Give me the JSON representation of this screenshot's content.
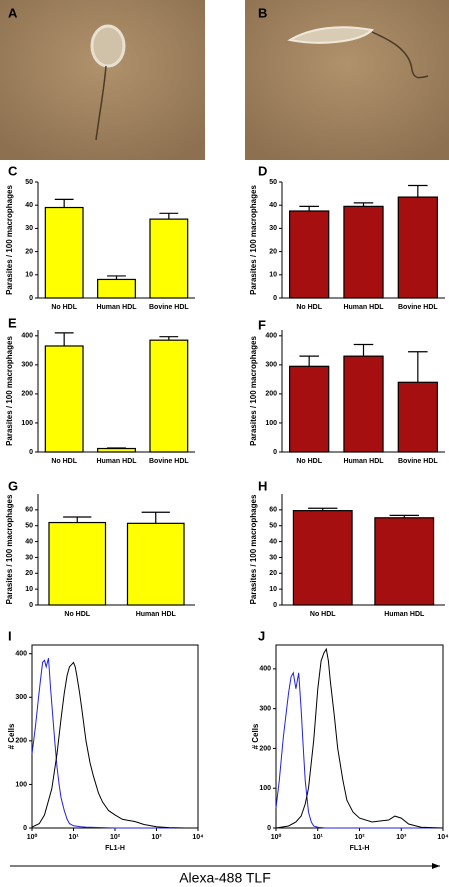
{
  "images": [
    {
      "panel": "A"
    },
    {
      "panel": "B"
    }
  ],
  "chart_data": [
    {
      "type": "bar",
      "panel": "C",
      "y_label": "Parasites / 100 macrophages",
      "categories": [
        "No HDL",
        "Human HDL",
        "Bovine HDL"
      ],
      "values": [
        39,
        8,
        34
      ],
      "errors": [
        3.5,
        1.5,
        2.5
      ],
      "color": "#ffff00",
      "ylim": [
        0,
        50
      ],
      "yticks": [
        0,
        10,
        20,
        30,
        40,
        50
      ]
    },
    {
      "type": "bar",
      "panel": "D",
      "y_label": "Parasites / 100 macrophages",
      "categories": [
        "No HDL",
        "Human HDL",
        "Bovine HDL"
      ],
      "values": [
        37.5,
        39.5,
        43.5
      ],
      "errors": [
        2,
        1.5,
        5
      ],
      "color": "#a50f0f",
      "ylim": [
        0,
        50
      ],
      "yticks": [
        0,
        10,
        20,
        30,
        40,
        50
      ]
    },
    {
      "type": "bar",
      "panel": "E",
      "y_label": "Parasites / 100 macrophages",
      "categories": [
        "No HDL",
        "Human HDL",
        "Bovine HDL"
      ],
      "values": [
        365,
        12,
        385
      ],
      "errors": [
        45,
        2,
        12
      ],
      "color": "#ffff00",
      "ylim": [
        0,
        420
      ],
      "yticks": [
        0,
        100,
        200,
        300,
        400
      ]
    },
    {
      "type": "bar",
      "panel": "F",
      "y_label": "Parasites / 100 macrophages",
      "categories": [
        "No HDL",
        "Human HDL",
        "Bovine HDL"
      ],
      "values": [
        295,
        330,
        240
      ],
      "errors": [
        35,
        40,
        105
      ],
      "color": "#a50f0f",
      "ylim": [
        0,
        420
      ],
      "yticks": [
        0,
        100,
        200,
        300,
        400
      ]
    },
    {
      "type": "bar",
      "panel": "G",
      "y_label": "Parasites / 100 macrophages",
      "categories": [
        "No HDL",
        "Human HDL"
      ],
      "values": [
        52,
        51.5
      ],
      "errors": [
        3.5,
        7
      ],
      "color": "#ffff00",
      "ylim": [
        0,
        70
      ],
      "yticks": [
        0,
        10,
        20,
        30,
        40,
        50,
        60
      ]
    },
    {
      "type": "bar",
      "panel": "H",
      "y_label": "Parasites / 100 macrophages",
      "categories": [
        "No HDL",
        "Human HDL"
      ],
      "values": [
        59.5,
        55
      ],
      "errors": [
        1.5,
        1.5
      ],
      "color": "#a50f0f",
      "ylim": [
        0,
        70
      ],
      "yticks": [
        0,
        10,
        20,
        30,
        40,
        50,
        60
      ]
    },
    {
      "type": "line",
      "panel": "I",
      "y_label": "# Cells",
      "x_label": "FL1-H",
      "log_x": true,
      "xlim": [
        1,
        10000
      ],
      "xticks": [
        {
          "value": 1,
          "label": "10⁰"
        },
        {
          "value": 10,
          "label": "10¹"
        },
        {
          "value": 100,
          "label": "10²"
        },
        {
          "value": 1000,
          "label": "10³"
        },
        {
          "value": 10000,
          "label": "10⁴"
        }
      ],
      "ylim": [
        0,
        420
      ],
      "yticks": [
        0,
        100,
        200,
        300,
        400
      ],
      "series": [
        {
          "color": "#2222dd",
          "x": [
            1,
            1.2,
            1.4,
            1.6,
            1.8,
            2,
            2.2,
            2.5,
            2.8,
            3.2,
            3.6,
            4,
            4.5,
            5,
            6,
            7,
            8,
            10,
            15,
            20,
            50,
            100,
            1000,
            10000
          ],
          "values": [
            170,
            230,
            290,
            340,
            380,
            385,
            370,
            390,
            320,
            250,
            190,
            140,
            100,
            70,
            40,
            20,
            10,
            5,
            3,
            2,
            1,
            0,
            0,
            0
          ]
        },
        {
          "color": "#000000",
          "x": [
            1,
            1.5,
            2,
            3,
            4,
            5,
            6,
            7,
            8,
            9,
            10,
            11,
            12,
            14,
            16,
            20,
            25,
            30,
            40,
            50,
            70,
            100,
            150,
            200,
            300,
            500,
            1000,
            2000,
            5000,
            10000
          ],
          "values": [
            2,
            10,
            30,
            90,
            170,
            250,
            310,
            350,
            370,
            375,
            380,
            370,
            350,
            310,
            270,
            200,
            150,
            120,
            80,
            60,
            40,
            30,
            20,
            18,
            15,
            8,
            3,
            1,
            0,
            0
          ]
        }
      ]
    },
    {
      "type": "line",
      "panel": "J",
      "y_label": "# Cells",
      "x_label": "FL1-H",
      "log_x": true,
      "xlim": [
        1,
        10000
      ],
      "xticks": [
        {
          "value": 1,
          "label": "10⁰"
        },
        {
          "value": 10,
          "label": "10¹"
        },
        {
          "value": 100,
          "label": "10²"
        },
        {
          "value": 1000,
          "label": "10³"
        },
        {
          "value": 10000,
          "label": "10⁴"
        }
      ],
      "ylim": [
        0,
        460
      ],
      "yticks": [
        0,
        100,
        200,
        300,
        400
      ],
      "series": [
        {
          "color": "#2222dd",
          "x": [
            1,
            1.2,
            1.5,
            1.8,
            2,
            2.3,
            2.6,
            3,
            3.5,
            4,
            4.5,
            5,
            6,
            7,
            8,
            10,
            15,
            100,
            10000
          ],
          "values": [
            50,
            120,
            230,
            300,
            340,
            380,
            390,
            350,
            390,
            300,
            200,
            120,
            40,
            15,
            5,
            2,
            0,
            0,
            0
          ]
        },
        {
          "color": "#000000",
          "x": [
            1,
            2,
            3,
            4,
            5,
            6,
            8,
            10,
            12,
            14,
            16,
            18,
            20,
            25,
            30,
            40,
            50,
            70,
            100,
            200,
            500,
            700,
            1000,
            1500,
            3000,
            10000
          ],
          "values": [
            0,
            5,
            15,
            30,
            60,
            100,
            220,
            350,
            420,
            440,
            450,
            420,
            370,
            280,
            200,
            120,
            70,
            40,
            25,
            15,
            20,
            30,
            25,
            10,
            2,
            0
          ]
        }
      ]
    }
  ],
  "caption": "Alexa-488 TLF"
}
